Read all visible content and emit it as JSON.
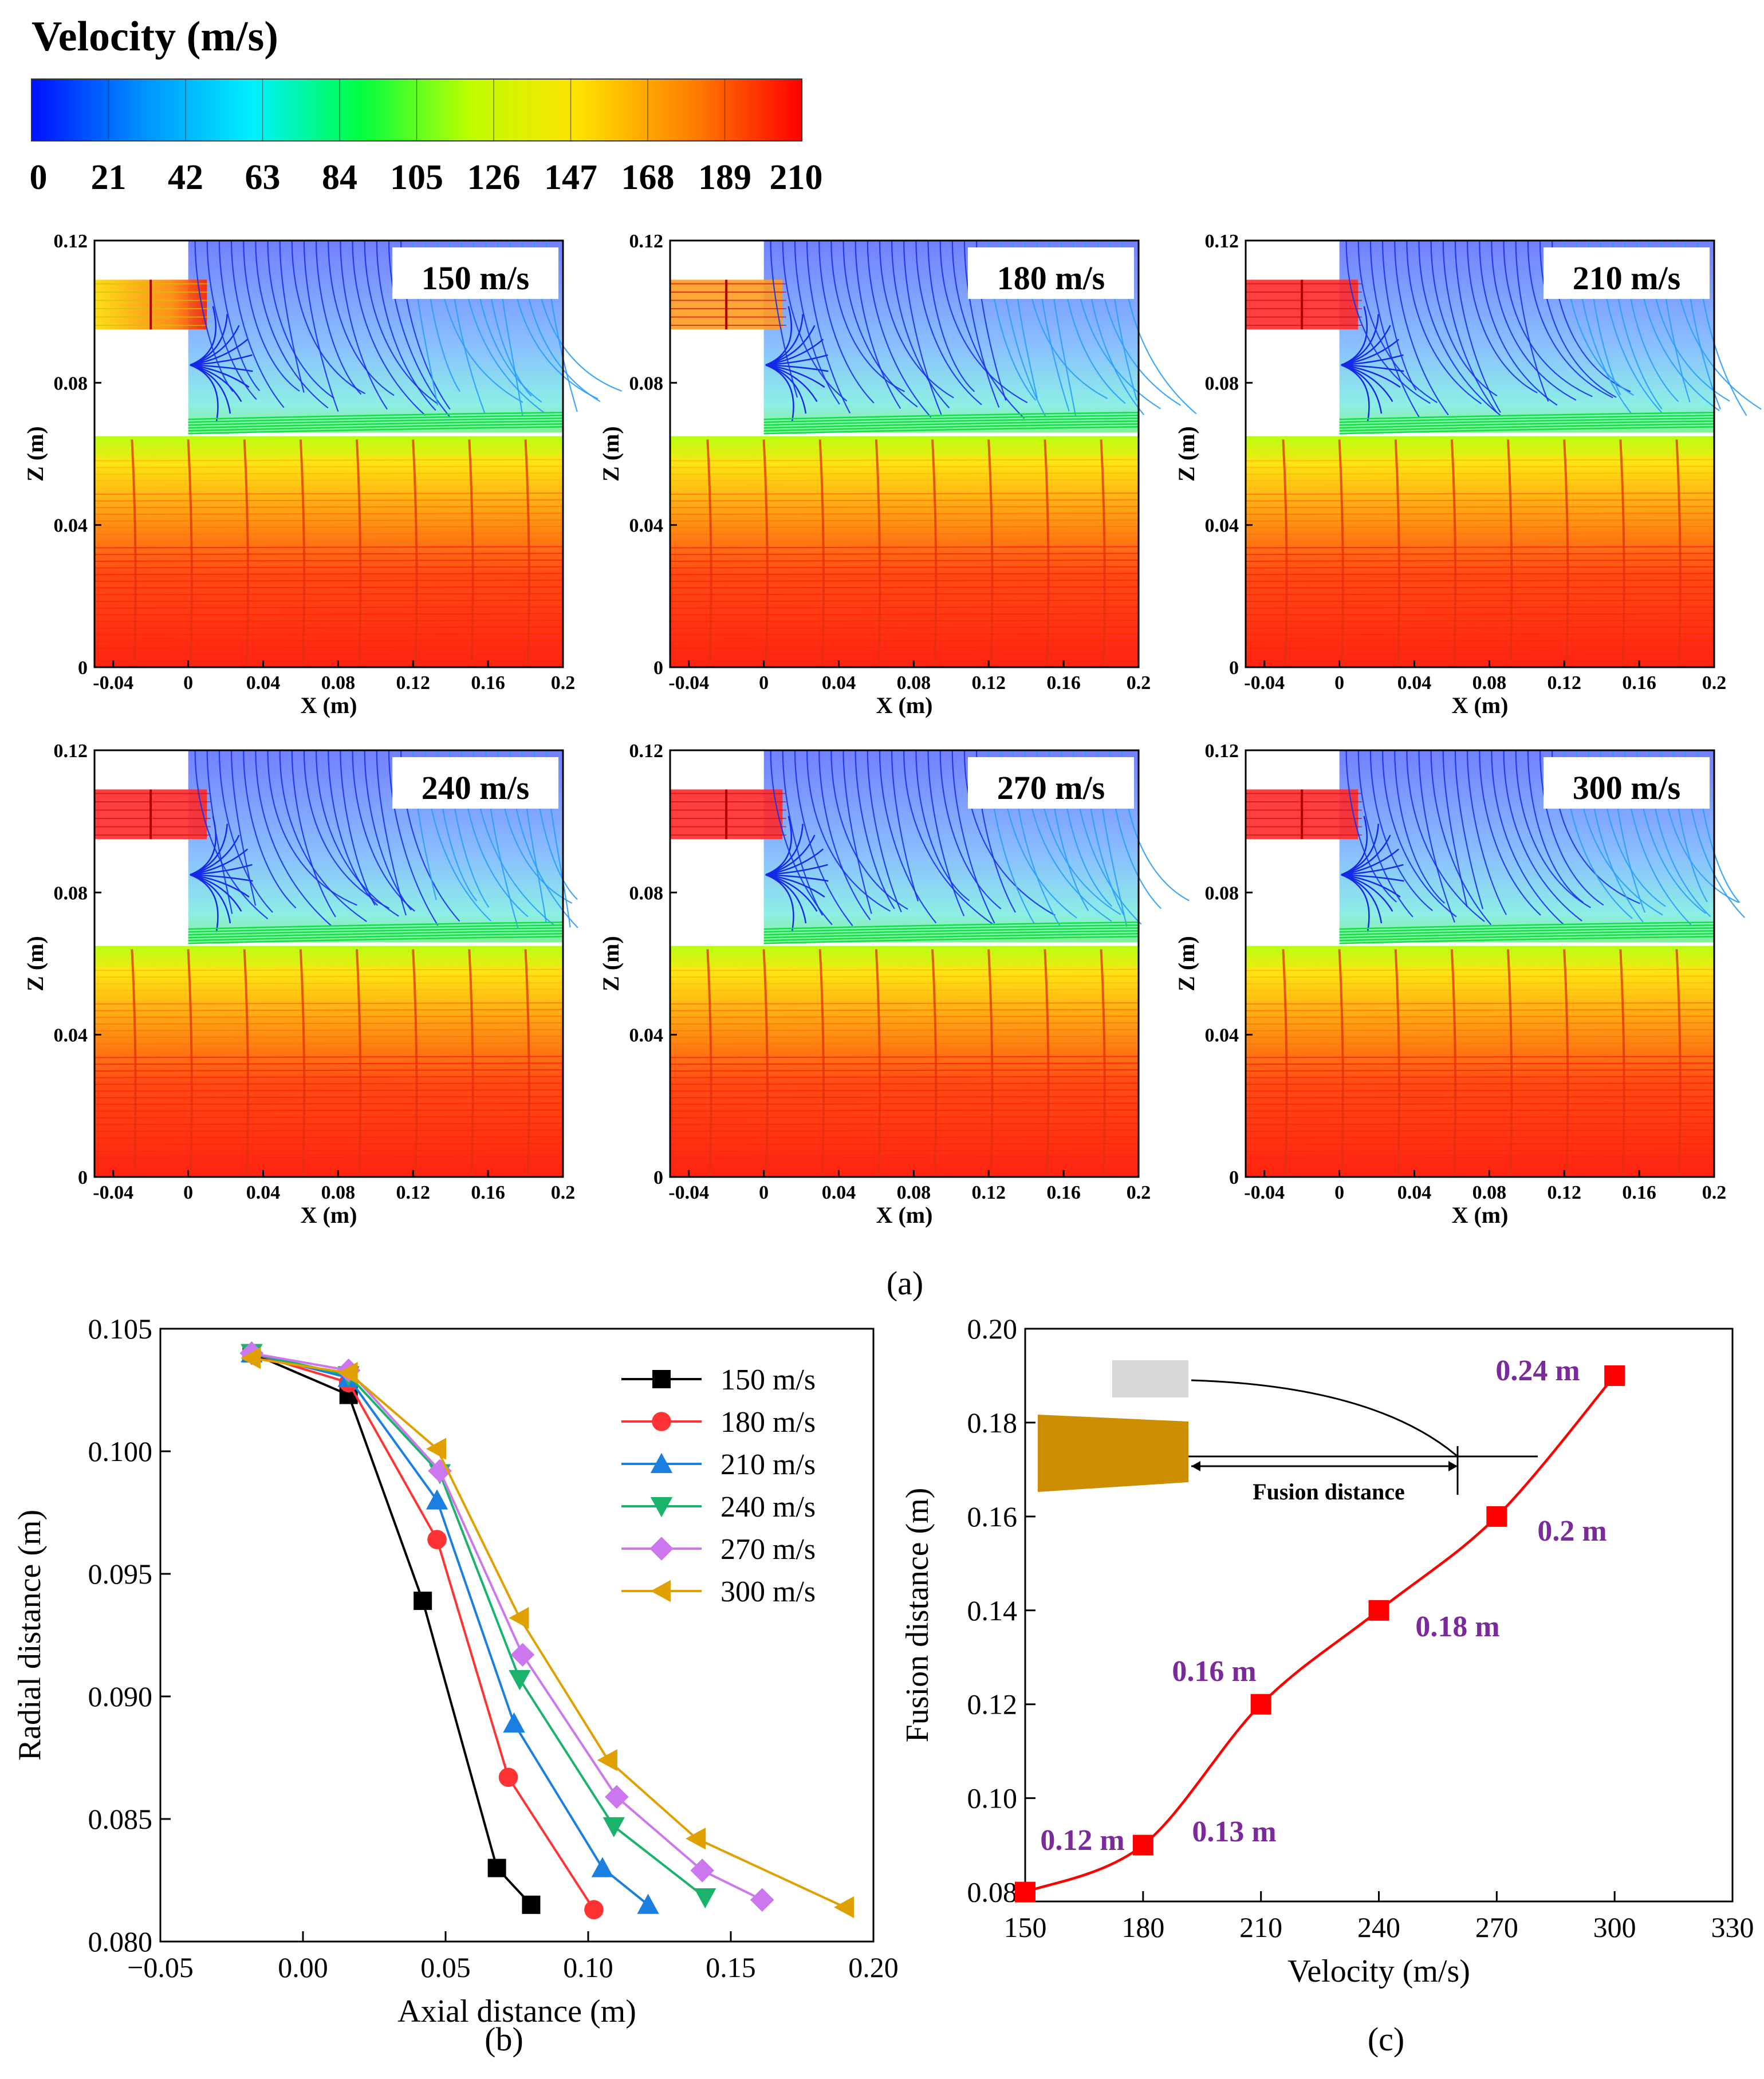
{
  "colorbar": {
    "title": "Velocity (m/s)",
    "ticks": [
      "0",
      "21",
      "42",
      "63",
      "84",
      "105",
      "126",
      "147",
      "168",
      "189",
      "210"
    ],
    "colors": [
      "#0010ff",
      "#0090ff",
      "#00f0ff",
      "#00ff40",
      "#c0ff00",
      "#ffe000",
      "#ff8000",
      "#ff0000"
    ]
  },
  "panel_a": {
    "caption": "(a)",
    "xlabel": "X (m)",
    "ylabel": "Z (m)",
    "xticks": [
      "-0.04",
      "0",
      "0.04",
      "0.08",
      "0.12",
      "0.16",
      "0.2"
    ],
    "yticks": [
      "0",
      "0.04",
      "0.08",
      "0.12"
    ],
    "cases": [
      "150 m/s",
      "180 m/s",
      "210 m/s",
      "240 m/s",
      "270 m/s",
      "300 m/s"
    ]
  },
  "panel_b": {
    "caption": "(b)"
  },
  "panel_c": {
    "caption": "(c)",
    "inset_label": "Fusion distance",
    "inset_colors": {
      "nozzle": "#cc8e00",
      "jet": "#d8d8d8"
    }
  },
  "chart_data": [
    {
      "type": "line",
      "id": "b",
      "xlabel": "Axial distance (m)",
      "ylabel": "Radial distance (m)",
      "xlim": [
        -0.05,
        0.2
      ],
      "ylim": [
        0.08,
        0.105
      ],
      "xticks": [
        "−0.05",
        "0.00",
        "0.05",
        "0.10",
        "0.15",
        "0.20"
      ],
      "yticks": [
        "0.080",
        "0.085",
        "0.090",
        "0.095",
        "0.100",
        "0.105"
      ],
      "legend_position": "top-right",
      "series": [
        {
          "name": "150 m/s",
          "color": "#000000",
          "marker": "square",
          "x": [
            -0.018,
            0.016,
            0.042,
            0.068,
            0.08
          ],
          "y": [
            0.104,
            0.1023,
            0.0939,
            0.083,
            0.0815
          ]
        },
        {
          "name": "180 m/s",
          "color": "#ff3333",
          "marker": "circle",
          "x": [
            -0.018,
            0.016,
            0.047,
            0.072,
            0.102
          ],
          "y": [
            0.104,
            0.1028,
            0.0964,
            0.0867,
            0.0813
          ]
        },
        {
          "name": "210 m/s",
          "color": "#1a7fe0",
          "marker": "triangle-up",
          "x": [
            -0.018,
            0.016,
            0.047,
            0.074,
            0.105,
            0.121
          ],
          "y": [
            0.104,
            0.103,
            0.098,
            0.0889,
            0.083,
            0.0815
          ]
        },
        {
          "name": "240 m/s",
          "color": "#1ab36b",
          "marker": "triangle-down",
          "x": [
            -0.018,
            0.016,
            0.048,
            0.076,
            0.109,
            0.141
          ],
          "y": [
            0.104,
            0.1031,
            0.0991,
            0.0907,
            0.0847,
            0.0818
          ]
        },
        {
          "name": "270 m/s",
          "color": "#cc77ee",
          "marker": "diamond",
          "x": [
            -0.018,
            0.016,
            0.048,
            0.077,
            0.11,
            0.14,
            0.161
          ],
          "y": [
            0.104,
            0.1033,
            0.0992,
            0.0917,
            0.0859,
            0.0829,
            0.0817
          ]
        },
        {
          "name": "300 m/s",
          "color": "#e0a000",
          "marker": "triangle-left",
          "x": [
            -0.018,
            0.016,
            0.047,
            0.076,
            0.107,
            0.138,
            0.19
          ],
          "y": [
            0.1038,
            0.1032,
            0.1001,
            0.0932,
            0.0874,
            0.0842,
            0.0814
          ]
        }
      ]
    },
    {
      "type": "line",
      "id": "c",
      "xlabel": "Velocity (m/s)",
      "ylabel": "Fusion distance (m)",
      "xlim": [
        150,
        330
      ],
      "ylim": [
        0.078,
        0.2
      ],
      "xticks": [
        "150",
        "180",
        "210",
        "240",
        "270",
        "300",
        "330"
      ],
      "yticks": [
        "0.08",
        "0.10",
        "0.12",
        "0.14",
        "0.16",
        "0.18",
        "0.20"
      ],
      "series": [
        {
          "name": "Fusion distance",
          "color": "#ff0000",
          "marker": "square",
          "x": [
            150,
            180,
            210,
            240,
            270,
            300
          ],
          "y": [
            0.08,
            0.09,
            0.12,
            0.14,
            0.16,
            0.19
          ]
        }
      ],
      "annotations": [
        "0.12 m",
        "0.13 m",
        "0.16 m",
        "0.18 m",
        "0.2 m",
        "0.24 m"
      ]
    }
  ]
}
